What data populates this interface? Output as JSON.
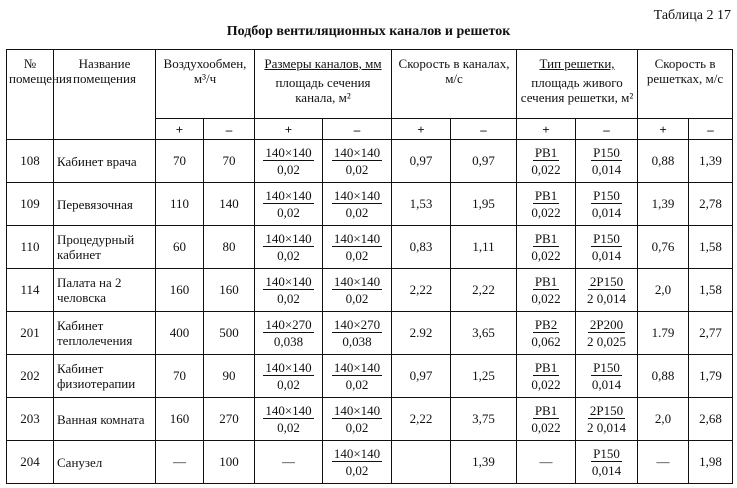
{
  "table_number": "Таблица 2 17",
  "title": "Подбор вентиляционных каналов и решеток",
  "headers": {
    "no": "№ помещения",
    "name": "Название помещения",
    "air": "Воздухообмен, м³/ч",
    "ducts_top": "Размеры каналов, мм",
    "ducts_bottom": "площадь сечения канала, м²",
    "duct_speed": "Скорость в каналах, м/с",
    "grille_top": "Тип решетки,",
    "grille_bottom": "площадь живого сечения решетки, м²",
    "grille_speed": "Скорость в решетках, м/с",
    "plus": "+",
    "minus": "–"
  },
  "rows": [
    {
      "no": "108",
      "name": "Кабинет врача",
      "a1": "70",
      "a2": "70",
      "d1n": "140×140",
      "d1d": "0,02",
      "d2n": "140×140",
      "d2d": "0,02",
      "s1": "0,97",
      "s2": "0,97",
      "g1n": "PB1",
      "g1d": "0,022",
      "g2n": "P150",
      "g2d": "0,014",
      "v1": "0,88",
      "v2": "1,39"
    },
    {
      "no": "109",
      "name": "Перевязочная",
      "a1": "110",
      "a2": "140",
      "d1n": "140×140",
      "d1d": "0,02",
      "d2n": "140×140",
      "d2d": "0,02",
      "s1": "1,53",
      "s2": "1,95",
      "g1n": "PB1",
      "g1d": "0,022",
      "g2n": "P150",
      "g2d": "0,014",
      "v1": "1,39",
      "v2": "2,78"
    },
    {
      "no": "110",
      "name": "Процедурный кабинет",
      "a1": "60",
      "a2": "80",
      "d1n": "140×140",
      "d1d": "0,02",
      "d2n": "140×140",
      "d2d": "0,02",
      "s1": "0,83",
      "s2": "1,11",
      "g1n": "PB1",
      "g1d": "0,022",
      "g2n": "P150",
      "g2d": "0,014",
      "v1": "0,76",
      "v2": "1,58"
    },
    {
      "no": "114",
      "name": "Палата на 2 человска",
      "a1": "160",
      "a2": "160",
      "d1n": "140×140",
      "d1d": "0,02",
      "d2n": "140×140",
      "d2d": "0,02",
      "s1": "2,22",
      "s2": "2,22",
      "g1n": "PB1",
      "g1d": "0,022",
      "g2n": "2P150",
      "g2d": "2 0,014",
      "v1": "2,0",
      "v2": "1,58"
    },
    {
      "no": "201",
      "name": "Кабинет теплолечения",
      "a1": "400",
      "a2": "500",
      "d1n": "140×270",
      "d1d": "0,038",
      "d2n": "140×270",
      "d2d": "0,038",
      "s1": "2.92",
      "s2": "3,65",
      "g1n": "PB2",
      "g1d": "0,062",
      "g2n": "2P200",
      "g2d": "2 0,025",
      "v1": "1.79",
      "v2": "2,77"
    },
    {
      "no": "202",
      "name": "Кабинет физиотерапии",
      "a1": "70",
      "a2": "90",
      "d1n": "140×140",
      "d1d": "0,02",
      "d2n": "140×140",
      "d2d": "0,02",
      "s1": "0,97",
      "s2": "1,25",
      "g1n": "PB1",
      "g1d": "0,022",
      "g2n": "P150",
      "g2d": "0,014",
      "v1": "0,88",
      "v2": "1,79"
    },
    {
      "no": "203",
      "name": "Ванная комната",
      "a1": "160",
      "a2": "270",
      "d1n": "140×140",
      "d1d": "0,02",
      "d2n": "140×140",
      "d2d": "0,02",
      "s1": "2,22",
      "s2": "3,75",
      "g1n": "PB1",
      "g1d": "0,022",
      "g2n": "2P150",
      "g2d": "2 0,014",
      "v1": "2,0",
      "v2": "2,68"
    },
    {
      "no": "204",
      "name": "Санузел",
      "a1": "—",
      "a2": "100",
      "d1n": "",
      "d1d": "",
      "d1": "—",
      "d2n": "140×140",
      "d2d": "0,02",
      "s1": "",
      "s2": "1,39",
      "g1n": "",
      "g1d": "",
      "g1": "—",
      "g2n": "P150",
      "g2d": "0,014",
      "v1": "—",
      "v2": "1,98"
    }
  ]
}
